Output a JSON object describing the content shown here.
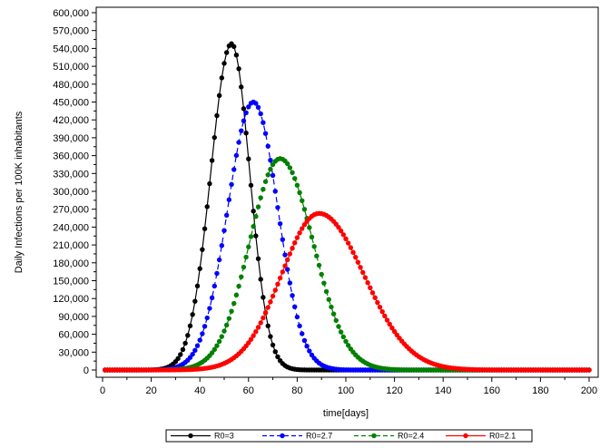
{
  "chart_data": {
    "type": "line",
    "title": "",
    "xlabel": "time[days]",
    "ylabel": "Daily Infections per 100K inhabitants",
    "xlim": [
      0,
      200
    ],
    "ylim": [
      0,
      600000
    ],
    "x_ticks": [
      0,
      20,
      40,
      60,
      80,
      100,
      120,
      140,
      160,
      180,
      200
    ],
    "x_tick_labels": [
      "0",
      "20",
      "40",
      "60",
      "80",
      "100",
      "120",
      "140",
      "160",
      "180",
      "200"
    ],
    "y_ticks": [
      0,
      30000,
      60000,
      90000,
      120000,
      150000,
      180000,
      210000,
      240000,
      270000,
      300000,
      330000,
      360000,
      390000,
      420000,
      450000,
      480000,
      510000,
      540000,
      570000,
      600000
    ],
    "y_tick_labels": [
      "0",
      "30,000",
      "60,000",
      "90,000",
      "120,000",
      "150,000",
      "180,000",
      "210,000",
      "240,000",
      "270,000",
      "300,000",
      "330,000",
      "360,000",
      "390,000",
      "420,000",
      "450,000",
      "480,000",
      "510,000",
      "540,000",
      "570,000",
      "600,000"
    ],
    "grid": false,
    "legend_position": "bottom",
    "x_range": [
      1,
      200
    ],
    "series": [
      {
        "name": "R0=3",
        "color": "#000000",
        "dash": "solid",
        "peak_day": 53,
        "peak_value": 548000,
        "rise_width": 8.5,
        "fall_width": 7.5
      },
      {
        "name": "R0=2.7",
        "color": "#0000ff",
        "dash": "dashed",
        "peak_day": 62,
        "peak_value": 450000,
        "rise_width": 10.5,
        "fall_width": 10.0
      },
      {
        "name": "R0=2.4",
        "color": "#008000",
        "dash": "dashed",
        "peak_day": 73,
        "peak_value": 355000,
        "rise_width": 12.5,
        "fall_width": 13.5
      },
      {
        "name": "R0=2.1",
        "color": "#ff0000",
        "dash": "solid",
        "peak_day": 89,
        "peak_value": 263000,
        "rise_width": 15.5,
        "fall_width": 18.5
      }
    ]
  }
}
